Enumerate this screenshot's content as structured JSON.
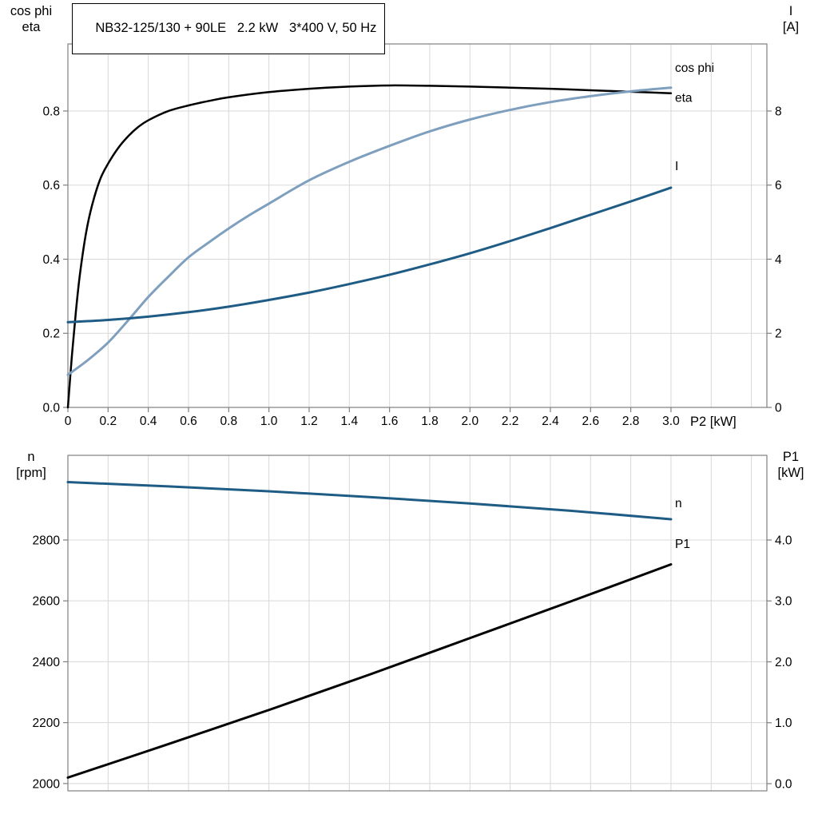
{
  "title": "NB32-125/130 + 90LE   2.2 kW   3*400 V, 50 Hz",
  "colors": {
    "black": "#000000",
    "dark_blue": "#1f5c85",
    "light_blue": "#7f9fbe",
    "grid": "#d8d8d8",
    "frame": "#7f7f7f"
  },
  "chart_data": [
    {
      "type": "line",
      "title": "NB32-125/130 + 90LE   2.2 kW   3*400 V, 50 Hz",
      "x_axis": {
        "label": "P2 [kW]",
        "lim": [
          0,
          3.477
        ],
        "grid_step": 0.2,
        "ticks": [
          0,
          0.2,
          0.4,
          0.6,
          0.8,
          1.0,
          1.2,
          1.4,
          1.6,
          1.8,
          2.0,
          2.2,
          2.4,
          2.6,
          2.8,
          3.0
        ],
        "tick_labels": [
          "0",
          "0.2",
          "0.4",
          "0.6",
          "0.8",
          "1.0",
          "1.2",
          "1.4",
          "1.6",
          "1.8",
          "2.0",
          "2.2",
          "2.4",
          "2.6",
          "2.8",
          "3.0"
        ]
      },
      "left_axis": {
        "title_lines": [
          "cos phi",
          "eta"
        ],
        "lim": [
          0,
          0.981
        ],
        "ticks": [
          0,
          0.2,
          0.4,
          0.6,
          0.8
        ],
        "tick_labels": [
          "0.0",
          "0.2",
          "0.4",
          "0.6",
          "0.8"
        ]
      },
      "right_axis": {
        "title_lines": [
          "I",
          "[A]"
        ],
        "lim": [
          0,
          9.81
        ],
        "ticks": [
          0,
          2,
          4,
          6,
          8
        ],
        "tick_labels": [
          "0",
          "2",
          "4",
          "6",
          "8"
        ]
      },
      "series": [
        {
          "name": "eta",
          "axis": "left",
          "color": "#000000",
          "width": 2.5,
          "x": [
            0,
            0.02,
            0.04,
            0.06,
            0.09,
            0.12,
            0.16,
            0.2,
            0.25,
            0.3,
            0.35,
            0.4,
            0.5,
            0.6,
            0.7,
            0.8,
            1.0,
            1.2,
            1.4,
            1.6,
            1.8,
            2.0,
            2.2,
            2.4,
            2.6,
            2.8,
            3.0
          ],
          "y": [
            0,
            0.14,
            0.26,
            0.36,
            0.47,
            0.545,
            0.615,
            0.658,
            0.7,
            0.732,
            0.757,
            0.775,
            0.8,
            0.815,
            0.827,
            0.837,
            0.851,
            0.86,
            0.866,
            0.869,
            0.868,
            0.866,
            0.863,
            0.86,
            0.856,
            0.852,
            0.848
          ],
          "label": {
            "text": "eta",
            "x": 3.02,
            "v": 0.825,
            "color": "#000000"
          }
        },
        {
          "name": "cos phi",
          "axis": "left",
          "color": "#7f9fbe",
          "width": 3,
          "x": [
            0,
            0.1,
            0.2,
            0.3,
            0.4,
            0.5,
            0.6,
            0.7,
            0.8,
            0.9,
            1.0,
            1.2,
            1.4,
            1.6,
            1.8,
            2.0,
            2.2,
            2.4,
            2.6,
            2.8,
            3.0
          ],
          "y": [
            0.088,
            0.128,
            0.175,
            0.235,
            0.298,
            0.353,
            0.405,
            0.445,
            0.483,
            0.518,
            0.55,
            0.613,
            0.663,
            0.706,
            0.745,
            0.777,
            0.803,
            0.824,
            0.84,
            0.853,
            0.863
          ],
          "label": {
            "text": "cos phi",
            "x": 3.02,
            "v": 0.905,
            "color": "#7f9fbe"
          }
        },
        {
          "name": "I",
          "axis": "right",
          "color": "#1f5c85",
          "width": 3,
          "x": [
            0,
            0.2,
            0.4,
            0.6,
            0.8,
            1.0,
            1.2,
            1.4,
            1.6,
            1.8,
            2.0,
            2.2,
            2.4,
            2.6,
            2.8,
            3.0
          ],
          "y": [
            2.3,
            2.36,
            2.45,
            2.57,
            2.72,
            2.9,
            3.1,
            3.33,
            3.58,
            3.86,
            4.16,
            4.49,
            4.84,
            5.2,
            5.56,
            5.93
          ],
          "label": {
            "text": "I",
            "x": 3.02,
            "v": 6.4,
            "color": "#1f5c85"
          }
        }
      ]
    },
    {
      "type": "line",
      "x_axis": {
        "label": "",
        "lim": [
          0,
          3.477
        ],
        "grid_step": 0.2,
        "ticks": [],
        "tick_labels": []
      },
      "left_axis": {
        "title_lines": [
          "n",
          "[rpm]"
        ],
        "lim": [
          1976,
          3078
        ],
        "ticks": [
          2000,
          2200,
          2400,
          2600,
          2800
        ],
        "tick_labels": [
          "2000",
          "2200",
          "2400",
          "2600",
          "2800"
        ]
      },
      "right_axis": {
        "title_lines": [
          "P1",
          "[kW]"
        ],
        "lim": [
          -0.118,
          5.39
        ],
        "ticks": [
          0,
          1,
          2,
          3,
          4
        ],
        "tick_labels": [
          "0.0",
          "1.0",
          "2.0",
          "3.0",
          "4.0"
        ]
      },
      "series": [
        {
          "name": "n",
          "axis": "left",
          "color": "#1f5c85",
          "width": 3,
          "x": [
            0,
            0.5,
            1.0,
            1.5,
            2.0,
            2.5,
            3.0
          ],
          "y": [
            2990,
            2976,
            2960,
            2941,
            2920,
            2896,
            2868
          ],
          "label": {
            "text": "n",
            "x": 3.02,
            "v": 2908,
            "color": "#1f5c85"
          }
        },
        {
          "name": "P1",
          "axis": "right",
          "color": "#000000",
          "width": 3,
          "x": [
            0,
            0.5,
            1.0,
            1.5,
            2.0,
            2.5,
            3.0
          ],
          "y": [
            0.1,
            0.65,
            1.21,
            1.79,
            2.39,
            2.99,
            3.6
          ],
          "label": {
            "text": "P1",
            "x": 3.02,
            "v": 3.87,
            "color": "#000000"
          }
        }
      ]
    }
  ]
}
